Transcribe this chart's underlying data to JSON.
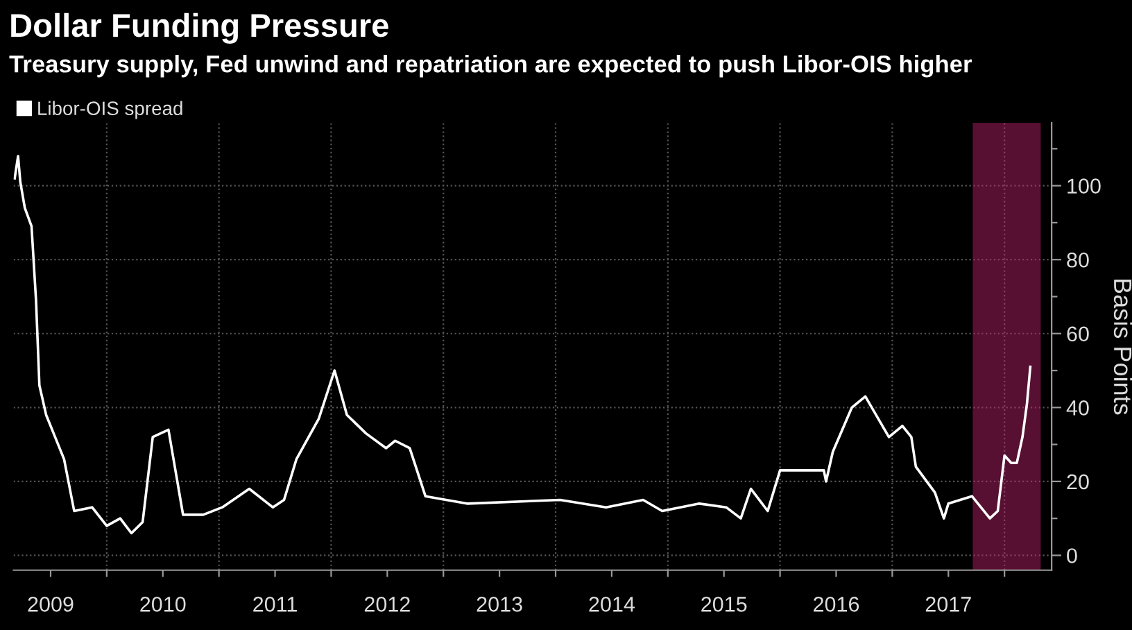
{
  "chart_data": {
    "type": "line",
    "title": "Dollar Funding Pressure",
    "subtitle": "Treasury supply, Fed unwind and repatriation are expected to push Libor-OIS higher",
    "ylabel": "Basis Points",
    "series": [
      {
        "name": "Libor-OIS spread",
        "color": "#ffffff",
        "x": [
          2009.18,
          2009.21,
          2009.23,
          2009.27,
          2009.33,
          2009.37,
          2009.4,
          2009.46,
          2009.54,
          2009.62,
          2009.71,
          2009.87,
          2010.0,
          2010.12,
          2010.22,
          2010.32,
          2010.41,
          2010.55,
          2010.68,
          2010.86,
          2011.03,
          2011.27,
          2011.48,
          2011.58,
          2011.69,
          2011.89,
          2012.03,
          2012.14,
          2012.31,
          2012.49,
          2012.57,
          2012.7,
          2012.84,
          2013.21,
          2014.04,
          2014.45,
          2014.78,
          2014.95,
          2015.28,
          2015.52,
          2015.65,
          2015.74,
          2015.79,
          2015.89,
          2016.0,
          2016.14,
          2016.39,
          2016.41,
          2016.47,
          2016.64,
          2016.76,
          2016.97,
          2017.09,
          2017.17,
          2017.21,
          2017.38,
          2017.46,
          2017.5,
          2017.71,
          2017.87,
          2017.94,
          2018.0,
          2018.06,
          2018.11,
          2018.16,
          2018.2,
          2018.23
        ],
        "values": [
          102,
          108,
          101,
          94,
          89,
          69,
          46,
          38,
          32,
          26,
          12,
          13,
          8,
          10,
          6,
          9,
          32,
          34,
          11,
          11,
          13,
          18,
          13,
          15,
          26,
          37,
          50,
          38,
          33,
          29,
          31,
          29,
          16,
          14,
          15,
          13,
          15,
          12,
          14,
          13,
          10,
          18,
          16,
          12,
          23,
          23,
          23,
          20,
          28,
          40,
          43,
          32,
          35,
          32,
          24,
          17,
          10,
          14,
          16,
          10,
          12,
          27,
          25,
          25,
          32,
          41,
          51
        ]
      }
    ],
    "xlim": [
      2009.17,
      2018.42
    ],
    "xticks": [
      {
        "value": 2009.5,
        "label": "2009"
      },
      {
        "value": 2010,
        "label": null
      },
      {
        "value": 2010.5,
        "label": "2010"
      },
      {
        "value": 2011,
        "label": null
      },
      {
        "value": 2011.5,
        "label": "2011"
      },
      {
        "value": 2012,
        "label": null
      },
      {
        "value": 2012.5,
        "label": "2012"
      },
      {
        "value": 2013,
        "label": null
      },
      {
        "value": 2013.5,
        "label": "2013"
      },
      {
        "value": 2014,
        "label": null
      },
      {
        "value": 2014.5,
        "label": "2014"
      },
      {
        "value": 2015,
        "label": null
      },
      {
        "value": 2015.5,
        "label": "2015"
      },
      {
        "value": 2016,
        "label": null
      },
      {
        "value": 2016.5,
        "label": "2016"
      },
      {
        "value": 2017,
        "label": null
      },
      {
        "value": 2017.5,
        "label": "2017"
      },
      {
        "value": 2018,
        "label": null
      }
    ],
    "ylim": [
      -4,
      117
    ],
    "yticks": [
      0,
      {
        "value": 10,
        "label": null
      },
      20,
      {
        "value": 30,
        "label": null
      },
      40,
      {
        "value": 50,
        "label": null
      },
      60,
      {
        "value": 70,
        "label": null
      },
      80,
      {
        "value": 90,
        "label": null
      },
      100,
      {
        "value": 110,
        "label": null
      }
    ],
    "bands": [
      {
        "axis": "x",
        "from": 2017.73,
        "to": 2018.31,
        "color": "#c0246e"
      }
    ],
    "grid": true,
    "legend": "top left",
    "line_style": "solid",
    "marker": "none"
  }
}
